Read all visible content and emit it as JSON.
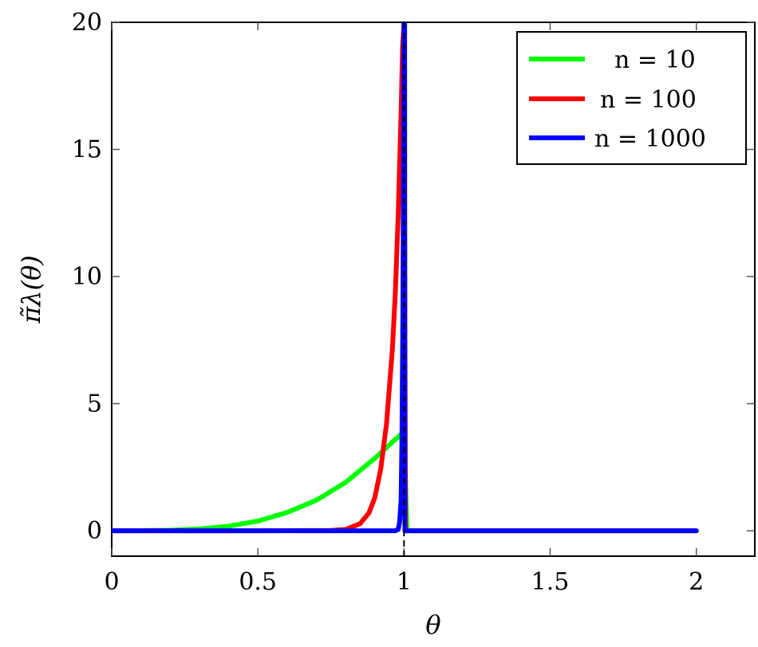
{
  "chart_data": {
    "type": "line",
    "xlabel": "θ",
    "ylabel": "π̃λ(θ)",
    "xlim": [
      0,
      2.2
    ],
    "ylim": [
      -1,
      20
    ],
    "xticks": [
      0,
      0.5,
      1,
      1.5,
      2
    ],
    "xtick_labels": [
      "0",
      "0.5",
      "1",
      "1.5",
      "2"
    ],
    "yticks": [
      0,
      5,
      10,
      15,
      20
    ],
    "ytick_labels": [
      "0",
      "5",
      "10",
      "15",
      "20"
    ],
    "grid": false,
    "legend_position": "top-right",
    "reference_line": {
      "x": 1,
      "style": "dashed",
      "color": "#000000"
    },
    "series": [
      {
        "name": "n = 10",
        "color": "#00ff00",
        "x": [
          0,
          0.1,
          0.2,
          0.3,
          0.4,
          0.5,
          0.6,
          0.7,
          0.8,
          0.9,
          0.99,
          1.0,
          1.01,
          1.5,
          2.0
        ],
        "y": [
          0,
          0.001,
          0.02,
          0.07,
          0.18,
          0.38,
          0.72,
          1.2,
          1.9,
          2.85,
          3.8,
          3.9,
          0,
          0,
          0
        ]
      },
      {
        "name": "n = 100",
        "color": "#ff0000",
        "x": [
          0,
          0.5,
          0.75,
          0.8,
          0.85,
          0.88,
          0.9,
          0.92,
          0.94,
          0.96,
          0.97,
          0.98,
          0.99,
          0.995,
          1.0,
          1.005,
          1.5,
          2.0
        ],
        "y": [
          0,
          0,
          0.01,
          0.05,
          0.28,
          0.7,
          1.3,
          2.4,
          4.2,
          7.1,
          9.3,
          12.4,
          16.5,
          19.0,
          20,
          0,
          0,
          0
        ]
      },
      {
        "name": "n = 1000",
        "color": "#0000ff",
        "x": [
          0,
          0.9,
          0.97,
          0.98,
          0.985,
          0.99,
          0.993,
          0.996,
          0.998,
          1.0,
          1.002,
          1.003,
          1.5,
          2.0
        ],
        "y": [
          0,
          0,
          0,
          0.05,
          0.35,
          1.2,
          3.8,
          8.5,
          14.0,
          20,
          20,
          0,
          0,
          0
        ]
      }
    ]
  }
}
